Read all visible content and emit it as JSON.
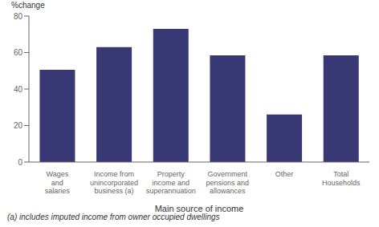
{
  "chart_data": {
    "type": "bar",
    "categories": [
      "Wages\nand\nsalaries",
      "Income from\nunincorporated\nbusiness (a)",
      "Property\nincome and\nsuperannuation",
      "Government\npensions and\nallowances",
      "Other",
      "Total\nHouseholds"
    ],
    "values": [
      50.5,
      63.0,
      73.0,
      58.5,
      26.0,
      58.5
    ],
    "color": "#383874",
    "ylabel": "%change",
    "xlabel": "Main source of income",
    "ylim": [
      0,
      80
    ],
    "yticks": [
      0,
      20,
      40,
      60,
      80
    ],
    "grid": false,
    "annotations": [
      "(a) includes imputed income from owner occupied dwellings"
    ]
  }
}
